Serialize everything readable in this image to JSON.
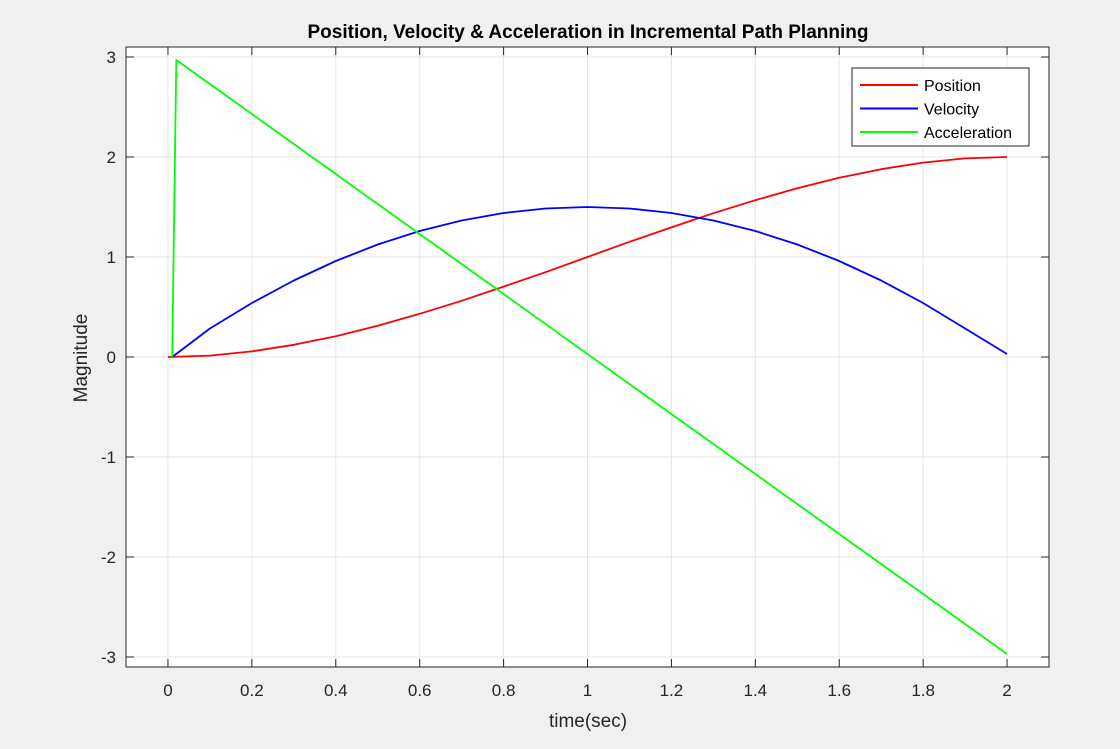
{
  "chart_data": {
    "type": "line",
    "title": "Position, Velocity & Acceleration in Incremental Path Planning",
    "xlabel": "time(sec)",
    "ylabel": "Magnitude",
    "xlim": [
      -0.1,
      2.1
    ],
    "ylim": [
      -3.1,
      3.1
    ],
    "x_ticks": [
      0,
      0.2,
      0.4,
      0.6,
      0.8,
      1,
      1.2,
      1.4,
      1.6,
      1.8,
      2
    ],
    "x_tick_labels": [
      "0",
      "0.2",
      "0.4",
      "0.6",
      "0.8",
      "1",
      "1.2",
      "1.4",
      "1.6",
      "1.8",
      "2"
    ],
    "y_ticks": [
      -3,
      -2,
      -1,
      0,
      1,
      2,
      3
    ],
    "y_tick_labels": [
      "-3",
      "-2",
      "-1",
      "0",
      "1",
      "2",
      "3"
    ],
    "grid": true,
    "legend_position": "top-right",
    "series": [
      {
        "name": "Position",
        "color": "#ff0000",
        "x": [
          0,
          0.1,
          0.2,
          0.3,
          0.4,
          0.5,
          0.6,
          0.7,
          0.8,
          0.9,
          1.0,
          1.1,
          1.2,
          1.3,
          1.4,
          1.5,
          1.6,
          1.7,
          1.8,
          1.9,
          2.0
        ],
        "y": [
          0,
          0.014,
          0.056,
          0.122,
          0.208,
          0.312,
          0.432,
          0.562,
          0.704,
          0.848,
          1.0,
          1.152,
          1.296,
          1.438,
          1.568,
          1.688,
          1.792,
          1.878,
          1.944,
          1.986,
          2.0
        ]
      },
      {
        "name": "Velocity",
        "color": "#0000ff",
        "x": [
          0.01,
          0.1,
          0.2,
          0.3,
          0.4,
          0.5,
          0.6,
          0.7,
          0.8,
          0.9,
          1.0,
          1.1,
          1.2,
          1.3,
          1.4,
          1.5,
          1.6,
          1.7,
          1.8,
          1.9,
          2.0
        ],
        "y": [
          0,
          0.285,
          0.54,
          0.765,
          0.96,
          1.125,
          1.26,
          1.365,
          1.44,
          1.485,
          1.5,
          1.485,
          1.44,
          1.365,
          1.26,
          1.125,
          0.96,
          0.765,
          0.54,
          0.285,
          0.03
        ]
      },
      {
        "name": "Acceleration",
        "color": "#00ff00",
        "x": [
          0.01,
          0.02,
          2.0
        ],
        "y": [
          0,
          2.97,
          -2.97
        ]
      }
    ]
  }
}
